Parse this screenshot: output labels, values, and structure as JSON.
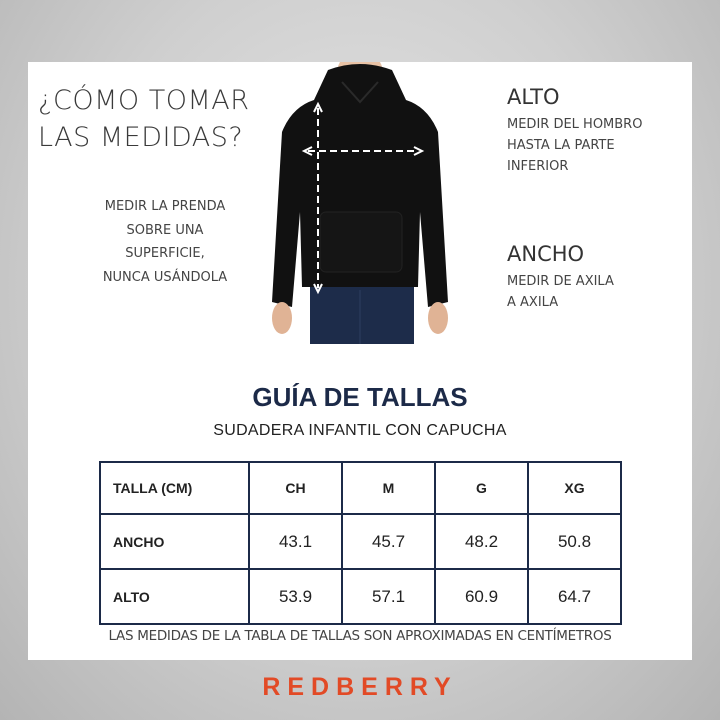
{
  "heading": {
    "line1": "¿CÓMO TOMAR",
    "line2": "LAS MEDIDAS?"
  },
  "note": [
    "MEDIR LA PRENDA",
    "SOBRE UNA",
    "SUPERFICIE,",
    "NUNCA USÁNDOLA"
  ],
  "alto": {
    "title": "ALTO",
    "lines": [
      "MEDIR DEL HOMBRO",
      "HASTA LA PARTE",
      "INFERIOR"
    ]
  },
  "ancho": {
    "title": "ANCHO",
    "lines": [
      "MEDIR DE AXILA",
      "A AXILA"
    ]
  },
  "guide": {
    "title": "GUÍA DE TALLAS",
    "subtitle": "SUDADERA INFANTIL CON CAPUCHA"
  },
  "table": {
    "headers": [
      "TALLA (CM)",
      "CH",
      "M",
      "G",
      "XG"
    ],
    "rows": [
      {
        "label": "ANCHO",
        "values": [
          "43.1",
          "45.7",
          "48.2",
          "50.8"
        ]
      },
      {
        "label": "ALTO",
        "values": [
          "53.9",
          "57.1",
          "60.9",
          "64.7"
        ]
      }
    ]
  },
  "footnote": "LAS MEDIDAS DE LA TABLA DE TALLAS SON APROXIMADAS EN CENTÍMETROS",
  "brand": "REDBERRY",
  "colors": {
    "navy": "#1c2a48",
    "brand": "#e24a26",
    "hoodie": "#111111"
  }
}
